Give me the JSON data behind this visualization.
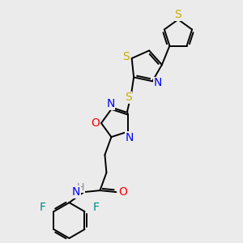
{
  "bg_color": "#ebebeb",
  "atom_colors": {
    "S": "#ccaa00",
    "N": "#0000ff",
    "O": "#ff0000",
    "F": "#008888",
    "H": "#888888",
    "C": "#000000"
  },
  "bond_color": "#000000",
  "font_size": 9,
  "figsize": [
    3.0,
    3.0
  ],
  "dpi": 100
}
